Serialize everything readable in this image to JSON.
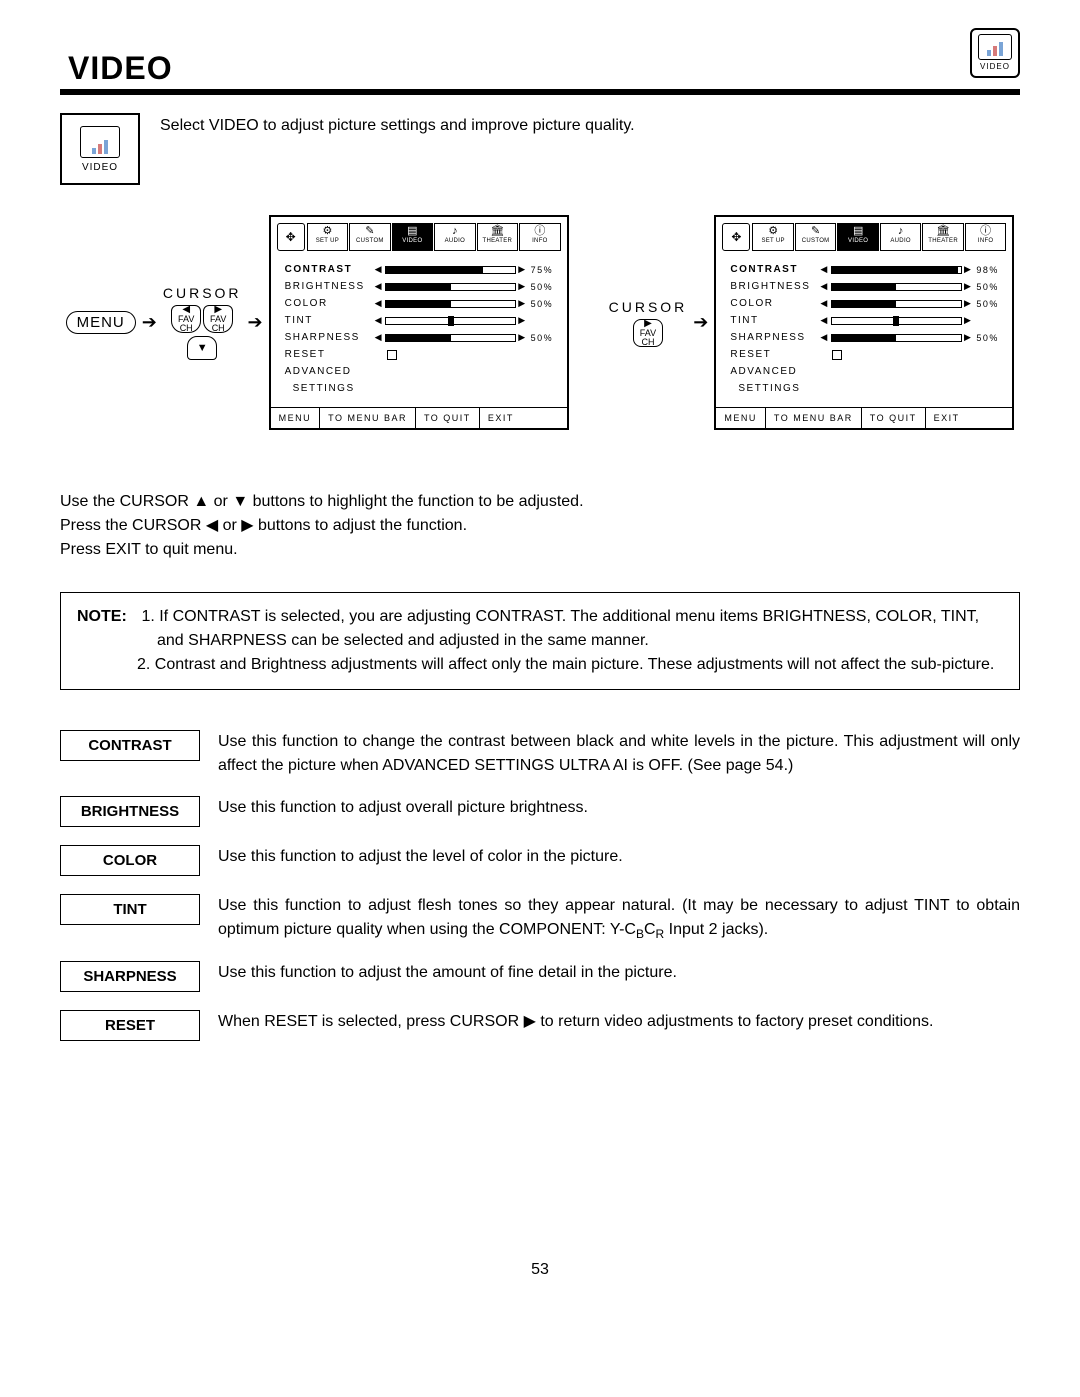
{
  "title": "VIDEO",
  "top_icon_label": "VIDEO",
  "intro": "Select VIDEO to adjust picture settings and improve picture quality.",
  "osd_tabs": [
    "SET UP",
    "CUSTOM",
    "VIDEO",
    "AUDIO",
    "THEATER",
    "INFO"
  ],
  "active_tab_index": 2,
  "cursor_label": "CURSOR",
  "menu_label": "MENU",
  "fav_label": "FAV",
  "ch_label": "CH",
  "panel1": {
    "rows": [
      {
        "label": "CONTRAST",
        "bold": true,
        "type": "slider",
        "fill": 75,
        "pct": "75%"
      },
      {
        "label": "BRIGHTNESS",
        "type": "slider",
        "fill": 50,
        "pct": "50%"
      },
      {
        "label": "COLOR",
        "type": "slider",
        "fill": 50,
        "pct": "50%"
      },
      {
        "label": "TINT",
        "type": "center",
        "pos": 50,
        "pct": ""
      },
      {
        "label": "SHARPNESS",
        "type": "slider",
        "fill": 50,
        "pct": "50%"
      },
      {
        "label": "RESET",
        "type": "check"
      },
      {
        "label": "ADVANCED",
        "type": "none"
      },
      {
        "label": "SETTINGS",
        "type": "none",
        "indent": true
      }
    ]
  },
  "panel2": {
    "rows": [
      {
        "label": "CONTRAST",
        "bold": true,
        "type": "slider",
        "fill": 98,
        "pct": "98%"
      },
      {
        "label": "BRIGHTNESS",
        "type": "slider",
        "fill": 50,
        "pct": "50%"
      },
      {
        "label": "COLOR",
        "type": "slider",
        "fill": 50,
        "pct": "50%"
      },
      {
        "label": "TINT",
        "type": "center",
        "pos": 50,
        "pct": ""
      },
      {
        "label": "SHARPNESS",
        "type": "slider",
        "fill": 50,
        "pct": "50%"
      },
      {
        "label": "RESET",
        "type": "check"
      },
      {
        "label": "ADVANCED",
        "type": "none"
      },
      {
        "label": "SETTINGS",
        "type": "none",
        "indent": true
      }
    ]
  },
  "osd_footer": [
    "MENU",
    "TO MENU BAR",
    "TO QUIT",
    "EXIT"
  ],
  "instructions": [
    "Use the CURSOR ▲ or ▼ buttons to highlight the function to be adjusted.",
    "Press the CURSOR ◀ or ▶ buttons to adjust the function.",
    "Press EXIT to quit menu."
  ],
  "note_label": "NOTE:",
  "notes": [
    "1. If CONTRAST is selected, you are adjusting CONTRAST.  The additional menu items BRIGHTNESS, COLOR, TINT, and SHARPNESS can be selected and adjusted in the same manner.",
    "2. Contrast and Brightness adjustments will affect only the main picture. These adjustments will not affect the sub-picture."
  ],
  "functions": [
    {
      "name": "CONTRAST",
      "desc": "Use this function to change the contrast between black and white levels in the picture.  This adjustment will only affect the picture when ADVANCED SETTINGS ULTRA AI is OFF. (See page 54.)"
    },
    {
      "name": "BRIGHTNESS",
      "desc": "Use this function to adjust overall picture brightness."
    },
    {
      "name": "COLOR",
      "desc": "Use this function to adjust the level of color in the picture."
    },
    {
      "name": "TINT",
      "desc": "Use this function to adjust flesh tones so they appear natural. (It may be necessary to adjust TINT to obtain optimum picture quality when using the COMPONENT: Y-C{B}C{R} Input 2 jacks)."
    },
    {
      "name": "SHARPNESS",
      "desc": "Use this function to adjust the amount of fine detail in the picture."
    },
    {
      "name": "RESET",
      "desc": "When RESET is selected, press CURSOR ▶ to return video adjustments to factory preset conditions."
    }
  ],
  "page_number": "53",
  "colors": {
    "text": "#000000",
    "bg": "#ffffff",
    "rule": "#000000"
  }
}
